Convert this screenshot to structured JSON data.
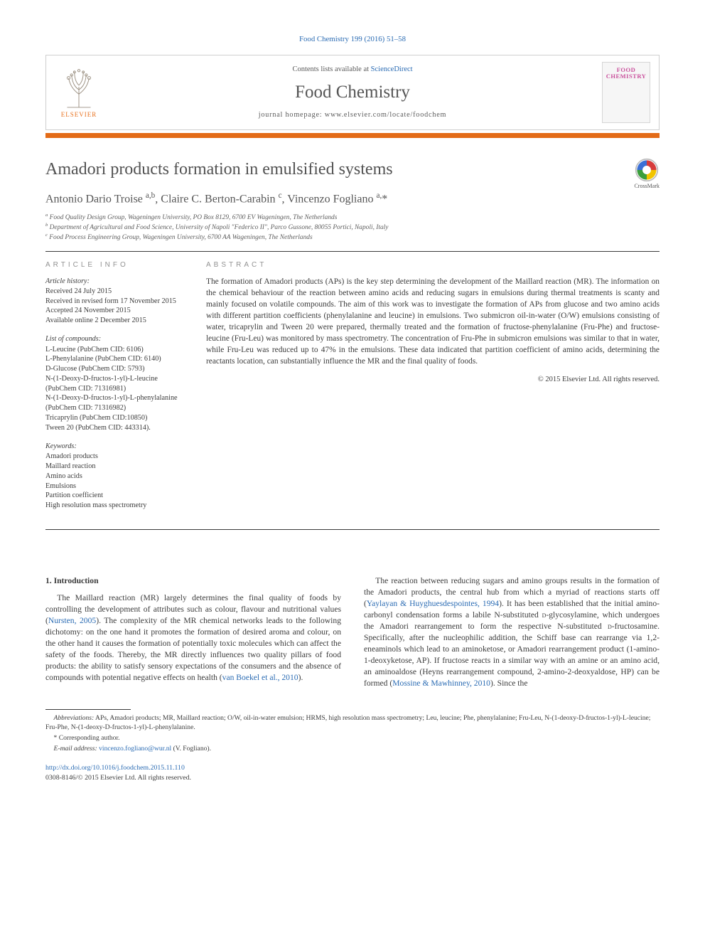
{
  "colors": {
    "accent_orange": "#e36b17",
    "link_blue": "#2a6bb3",
    "text": "#3b3b3b",
    "heading_grey": "#929292",
    "cover_pink": "#c94e9b"
  },
  "journal_ref": "Food Chemistry 199 (2016) 51–58",
  "header": {
    "contents_prefix": "Contents lists available at ",
    "contents_link": "ScienceDirect",
    "journal_name": "Food Chemistry",
    "homepage_prefix": "journal homepage: ",
    "homepage_url": "www.elsevier.com/locate/foodchem",
    "elsevier": "ELSEVIER",
    "cover_title": "FOOD CHEMISTRY"
  },
  "crossmark_label": "CrossMark",
  "title": "Amadori products formation in emulsified systems",
  "authors_html": "Antonio Dario Troise <sup>a,b</sup>, Claire C. Berton-Carabin <sup>c</sup>, Vincenzo Fogliano <sup>a,</sup><span class='star'>*</span>",
  "affiliations": [
    "a Food Quality Design Group, Wageningen University, PO Box 8129, 6700 EV Wageningen, The Netherlands",
    "b Department of Agricultural and Food Science, University of Napoli \"Federico II\", Parco Gussone, 80055 Portici, Napoli, Italy",
    "c Food Process Engineering Group, Wageningen University, 6700 AA Wageningen, The Netherlands"
  ],
  "info": {
    "heading": "ARTICLE INFO",
    "history_label": "Article history:",
    "history": [
      "Received 24 July 2015",
      "Received in revised form 17 November 2015",
      "Accepted 24 November 2015",
      "Available online 2 December 2015"
    ],
    "compounds_label": "List of compounds:",
    "compounds": [
      "L-Leucine (PubChem CID: 6106)",
      "L-Phenylalanine (PubChem CID: 6140)",
      "D-Glucose (PubChem CID: 5793)",
      "N-(1-Deoxy-D-fructos-1-yl)-L-leucine (PubChem CID: 71316981)",
      "N-(1-Deoxy-D-fructos-1-yl)-L-phenylalanine (PubChem CID: 71316982)",
      "Tricaprylin (PubChem CID:10850)",
      "Tween 20 (PubChem CID: 443314)."
    ],
    "keywords_label": "Keywords:",
    "keywords": [
      "Amadori products",
      "Maillard reaction",
      "Amino acids",
      "Emulsions",
      "Partition coefficient",
      "High resolution mass spectrometry"
    ]
  },
  "abstract": {
    "heading": "ABSTRACT",
    "text": "The formation of Amadori products (APs) is the key step determining the development of the Maillard reaction (MR). The information on the chemical behaviour of the reaction between amino acids and reducing sugars in emulsions during thermal treatments is scanty and mainly focused on volatile compounds. The aim of this work was to investigate the formation of APs from glucose and two amino acids with different partition coefficients (phenylalanine and leucine) in emulsions. Two submicron oil-in-water (O/W) emulsions consisting of water, tricaprylin and Tween 20 were prepared, thermally treated and the formation of fructose-phenylalanine (Fru-Phe) and fructose-leucine (Fru-Leu) was monitored by mass spectrometry. The concentration of Fru-Phe in submicron emulsions was similar to that in water, while Fru-Leu was reduced up to 47% in the emulsions. These data indicated that partition coefficient of amino acids, determining the reactants location, can substantially influence the MR and the final quality of foods.",
    "copyright": "© 2015 Elsevier Ltd. All rights reserved."
  },
  "section1": {
    "heading": "1. Introduction",
    "p1_pre": "The Maillard reaction (MR) largely determines the final quality of foods by controlling the development of attributes such as colour, flavour and nutritional values (",
    "p1_cite1": "Nursten, 2005",
    "p1_post": "). The complexity of the MR chemical networks leads to the following dichotomy: on the one hand it promotes the formation of desired aroma and colour, on the other hand it causes the formation of potentially toxic molecules which can affect the safety of the foods. Thereby, the MR directly influences two quality pillars of food products: the ability to satisfy sensory expectations of the consumers and the absence of compounds with potential negative effects on health (",
    "p1_cite2": "van Boekel et al., 2010",
    "p1_close": ").",
    "p2_pre": "The reaction between reducing sugars and amino groups results in the formation of the Amadori products, the central hub from which a myriad of reactions starts off (",
    "p2_cite1": "Yaylayan & Huyghuesdespointes, 1994",
    "p2_mid1": "). It has been established that the initial amino-carbonyl condensation forms a labile N-substituted ",
    "p2_sc1": "d",
    "p2_mid2": "-glycosylamine, which undergoes the Amadori rearrangement to form the respective N-substituted ",
    "p2_sc2": "d",
    "p2_mid3": "-fructosamine. Specifically, after the nucleophilic addition, the Schiff base can rearrange via 1,2-eneaminols which lead to an aminoketose, or Amadori rearrangement product (1-amino-1-deoxyketose, AP). If fructose reacts in a similar way with an amine or an amino acid, an aminoaldose (Heyns rearrangement compound, 2-amino-2-deoxyaldose, HP) can be formed (",
    "p2_cite2": "Mossine & Mawhinney, 2010",
    "p2_close": "). Since the"
  },
  "footnotes": {
    "abbrev_label": "Abbreviations:",
    "abbrev_text": " APs, Amadori products; MR, Maillard reaction; O/W, oil-in-water emulsion; HRMS, high resolution mass spectrometry; Leu, leucine; Phe, phenylalanine; Fru-Leu, N-(1-deoxy-D-fructos-1-yl)-L-leucine; Fru-Phe, N-(1-deoxy-D-fructos-1-yl)-L-phenylalanine.",
    "corr": "* Corresponding author.",
    "email_label": "E-mail address: ",
    "email": "vincenzo.fogliano@wur.nl",
    "email_who": " (V. Fogliano)."
  },
  "doi": {
    "url": "http://dx.doi.org/10.1016/j.foodchem.2015.11.110",
    "meta": "0308-8146/© 2015 Elsevier Ltd. All rights reserved."
  }
}
